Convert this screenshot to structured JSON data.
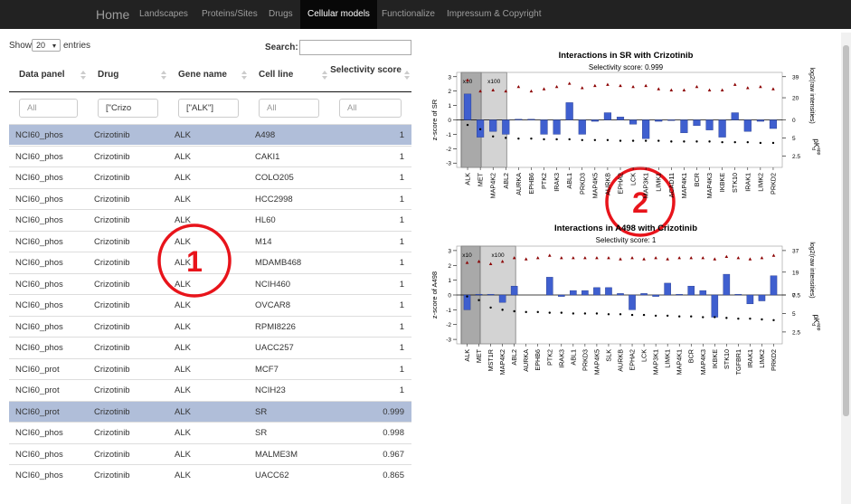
{
  "nav": {
    "brand": "Home",
    "items": [
      "Landscapes",
      "Proteins/Sites",
      "Drugs",
      "Cellular models",
      "Functionalize",
      "Impressum & Copyright"
    ],
    "active": 3
  },
  "controls": {
    "show": "Show",
    "length": "20",
    "entries": "entries",
    "search": "Search:"
  },
  "table": {
    "headers": [
      "Data panel",
      "Drug",
      "Gene name",
      "Cell line",
      "Selectivity score"
    ],
    "filters": [
      "All",
      "[\"Crizo",
      "[\"ALK\"]",
      "All",
      "All"
    ],
    "rows": [
      [
        "NCI60_phos",
        "Crizotinib",
        "ALK",
        "A498",
        "1"
      ],
      [
        "NCI60_phos",
        "Crizotinib",
        "ALK",
        "CAKI1",
        "1"
      ],
      [
        "NCI60_phos",
        "Crizotinib",
        "ALK",
        "COLO205",
        "1"
      ],
      [
        "NCI60_phos",
        "Crizotinib",
        "ALK",
        "HCC2998",
        "1"
      ],
      [
        "NCI60_phos",
        "Crizotinib",
        "ALK",
        "HL60",
        "1"
      ],
      [
        "NCI60_phos",
        "Crizotinib",
        "ALK",
        "M14",
        "1"
      ],
      [
        "NCI60_phos",
        "Crizotinib",
        "ALK",
        "MDAMB468",
        "1"
      ],
      [
        "NCI60_phos",
        "Crizotinib",
        "ALK",
        "NCIH460",
        "1"
      ],
      [
        "NCI60_phos",
        "Crizotinib",
        "ALK",
        "OVCAR8",
        "1"
      ],
      [
        "NCI60_phos",
        "Crizotinib",
        "ALK",
        "RPMI8226",
        "1"
      ],
      [
        "NCI60_phos",
        "Crizotinib",
        "ALK",
        "UACC257",
        "1"
      ],
      [
        "NCI60_prot",
        "Crizotinib",
        "ALK",
        "MCF7",
        "1"
      ],
      [
        "NCI60_prot",
        "Crizotinib",
        "ALK",
        "NCIH23",
        "1"
      ],
      [
        "NCI60_prot",
        "Crizotinib",
        "ALK",
        "SR",
        "0.999"
      ],
      [
        "NCI60_phos",
        "Crizotinib",
        "ALK",
        "SR",
        "0.998"
      ],
      [
        "NCI60_phos",
        "Crizotinib",
        "ALK",
        "MALME3M",
        "0.967"
      ],
      [
        "NCI60_phos",
        "Crizotinib",
        "ALK",
        "UACC62",
        "0.865"
      ]
    ],
    "selected": [
      0,
      13
    ]
  },
  "annotations": [
    "1",
    "2"
  ],
  "charts": [
    {
      "type": "bar",
      "title": "Interactions in  SR with Crizotinib",
      "subtitle": "Selectivity score: 0.999",
      "ylabel": "z-score of SR",
      "y2label": "log2(raw intensities)",
      "y3label": "pK",
      "y3sub": "d",
      "y3sup": "app",
      "marks": [
        "x10",
        "x100"
      ],
      "shaded": [
        1,
        3
      ],
      "categories": [
        "ALK",
        "MET",
        "MAP4K2",
        "ABL2",
        "AURKA",
        "EPHB6",
        "PTK2",
        "IRAK3",
        "ABL1",
        "PRKD3",
        "MAP4K5",
        "AURKB",
        "EPHA2",
        "LCK",
        "MAP3K1",
        "LIMK1",
        "ACAD11",
        "MAP4K1",
        "BCR",
        "MAP4K3",
        "IKBKE",
        "STK10",
        "IRAK1",
        "LIMK2",
        "PRKD2"
      ],
      "values": [
        1.8,
        -1.2,
        -0.8,
        -1.0,
        0.05,
        0.05,
        -1.0,
        -1.0,
        1.2,
        -1.0,
        -0.1,
        0.5,
        0.2,
        -0.3,
        -1.3,
        -0.1,
        -0.05,
        -0.9,
        -0.4,
        -0.7,
        -1.2,
        0.5,
        -0.8,
        -0.1,
        -0.6
      ],
      "intensities": [
        36,
        26,
        27,
        26,
        30,
        26,
        28,
        30,
        33,
        29,
        31,
        32,
        31,
        30,
        31,
        28,
        27,
        27,
        30,
        27,
        27,
        32,
        29,
        30,
        28
      ],
      "pkd": [
        6.8,
        6.2,
        5.2,
        5.0,
        4.9,
        4.9,
        4.8,
        4.8,
        4.8,
        4.7,
        4.7,
        4.7,
        4.6,
        4.6,
        4.6,
        4.6,
        4.5,
        4.5,
        4.5,
        4.5,
        4.4,
        4.4,
        4.4,
        4.3,
        4.3
      ],
      "color": "#3f5fcf",
      "ylim": [
        -3.3,
        3.3
      ],
      "yticks": [
        3,
        2,
        1,
        0,
        -1,
        -2,
        -3
      ],
      "y2lim": [
        0,
        39
      ],
      "y2ticks": [
        0,
        20,
        39
      ],
      "y3lim": [
        0,
        7.5
      ],
      "y3ticks": [
        5,
        2.5
      ]
    },
    {
      "type": "bar",
      "title": "Interactions in  A498 with Crizotinib",
      "subtitle": "Selectivity score: 1",
      "ylabel": "z-score of A498",
      "y2label": "log2(raw intensities)",
      "y3label": "pK",
      "y3sub": "d",
      "y3sup": "app",
      "marks": [
        "x10",
        "x100"
      ],
      "shaded": [
        1,
        4
      ],
      "categories": [
        "ALK",
        "MET",
        "MST1R",
        "MAP4K2",
        "ABL2",
        "AURKA",
        "EPHB6",
        "PTK2",
        "IRAK3",
        "ABL1",
        "PRKD3",
        "MAP4K5",
        "SLK",
        "AURKB",
        "EPHA2",
        "LCK",
        "MAP3K1",
        "LIMK1",
        "MAP4K1",
        "BCR",
        "MAP4K3",
        "IKBKE",
        "STK10",
        "TGFBR1",
        "IRAK1",
        "LIMK2",
        "PRKD2"
      ],
      "values": [
        -1.0,
        0.05,
        0.05,
        -0.5,
        0.6,
        0,
        0,
        1.2,
        -0.1,
        0.3,
        0.3,
        0.5,
        0.5,
        0.1,
        -1.0,
        0.1,
        -0.1,
        0.8,
        0.05,
        0.6,
        0.3,
        -1.5,
        1.4,
        0.05,
        -0.6,
        -0.4,
        1.3
      ],
      "intensities": [
        27,
        28,
        26,
        28,
        31,
        30,
        31,
        33,
        31,
        31,
        31,
        31,
        31,
        30,
        31,
        30,
        31,
        30,
        31,
        31,
        31,
        30,
        32,
        31,
        30,
        31,
        33
      ],
      "pkd": [
        7.3,
        6.8,
        5.8,
        5.5,
        5.3,
        5.2,
        5.2,
        5.1,
        5.1,
        5.0,
        5.0,
        5.0,
        4.9,
        4.9,
        4.8,
        4.8,
        4.7,
        4.7,
        4.6,
        4.6,
        4.5,
        4.5,
        4.4,
        4.3,
        4.3,
        4.2,
        4.1
      ],
      "color": "#3f5fcf",
      "ylim": [
        -3.3,
        3.3
      ],
      "yticks": [
        3,
        2,
        1,
        0,
        -1,
        -2,
        -3
      ],
      "y2lim": [
        0,
        37
      ],
      "y2ticks": [
        0,
        19,
        37
      ],
      "y3lim": [
        0,
        7.5
      ],
      "y3ticks": [
        7.5,
        5,
        2.5
      ]
    }
  ]
}
